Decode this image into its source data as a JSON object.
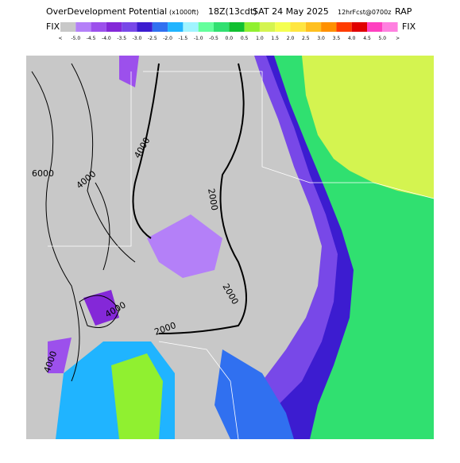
{
  "header": {
    "title": "OverDevelopment Potential",
    "units": "(x1000ft)",
    "time": "18Z(13cdt)",
    "date": "SAT 24 May 2025",
    "forecast": "12hrFcst@0700z",
    "model": "RAP",
    "fix_left": "FIX",
    "fix_right": "FIX"
  },
  "colorbar": {
    "labels": [
      "<",
      "-5.0",
      "-4.5",
      "-4.0",
      "-3.5",
      "-3.0",
      "-2.5",
      "-2.0",
      "-1.5",
      "-1.0",
      "-0.5",
      "0.0",
      "0.5",
      "1.0",
      "1.5",
      "2.0",
      "2.5",
      "3.0",
      "3.5",
      "4.0",
      "4.5",
      "5.0",
      ">"
    ],
    "colors": [
      "#c8c8c8",
      "#b480f8",
      "#9c50ec",
      "#8428d8",
      "#7848e8",
      "#3c1cd0",
      "#3070f0",
      "#20b4ff",
      "#a0f4ff",
      "#64ff9c",
      "#30e070",
      "#10c030",
      "#90f030",
      "#d4f450",
      "#f4ff50",
      "#ffe640",
      "#ffc020",
      "#ff9000",
      "#ff3c00",
      "#e00000",
      "#ff40c0",
      "#ff80e0"
    ]
  },
  "map": {
    "contour_labels": [
      "6000",
      "4000",
      "4000",
      "2000",
      "2000",
      "4000",
      "2000",
      "4000"
    ]
  }
}
